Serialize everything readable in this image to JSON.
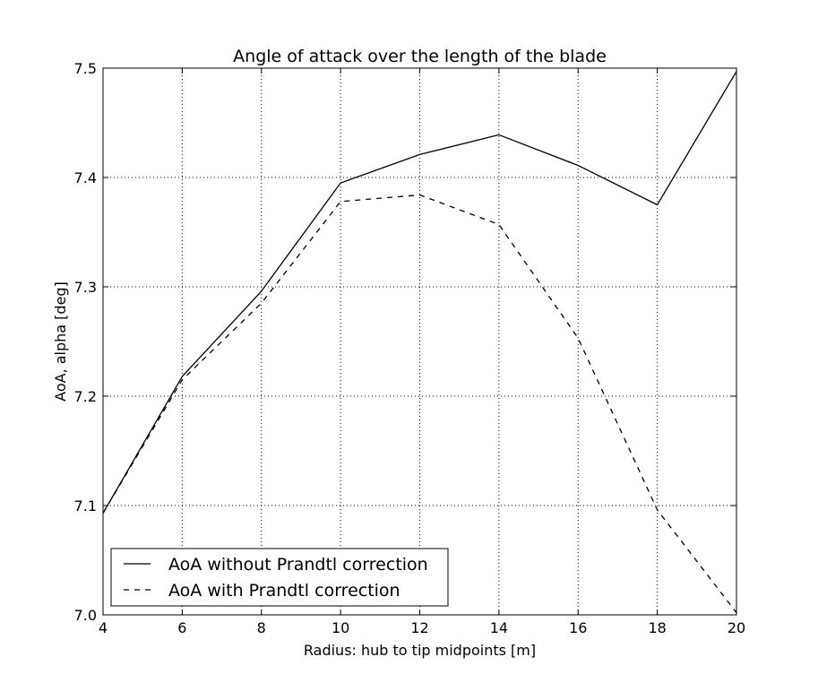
{
  "chart_data": {
    "type": "line",
    "title": "Angle of attack over the length of the blade",
    "xlabel": "Radius: hub to tip midpoints [m]",
    "ylabel": "AoA, alpha [deg]",
    "xlim": [
      4,
      20
    ],
    "ylim": [
      7.0,
      7.5
    ],
    "xticks": [
      "4",
      "6",
      "8",
      "10",
      "12",
      "14",
      "16",
      "18",
      "20"
    ],
    "yticks": [
      "7.0",
      "7.1",
      "7.2",
      "7.3",
      "7.4",
      "7.5"
    ],
    "grid": true,
    "legend_position": "lower-left",
    "x": [
      4,
      6,
      8,
      10,
      12,
      14,
      16,
      18,
      20
    ],
    "series": [
      {
        "name": "AoA without Prandtl correction",
        "style": "solid",
        "color": "#000000",
        "values": [
          7.093,
          7.218,
          7.296,
          7.395,
          7.421,
          7.439,
          7.411,
          7.375,
          7.497
        ]
      },
      {
        "name": "AoA with Prandtl correction",
        "style": "dashed",
        "color": "#000000",
        "values": [
          7.093,
          7.215,
          7.285,
          7.378,
          7.384,
          7.357,
          7.253,
          7.096,
          7.002
        ]
      }
    ]
  }
}
